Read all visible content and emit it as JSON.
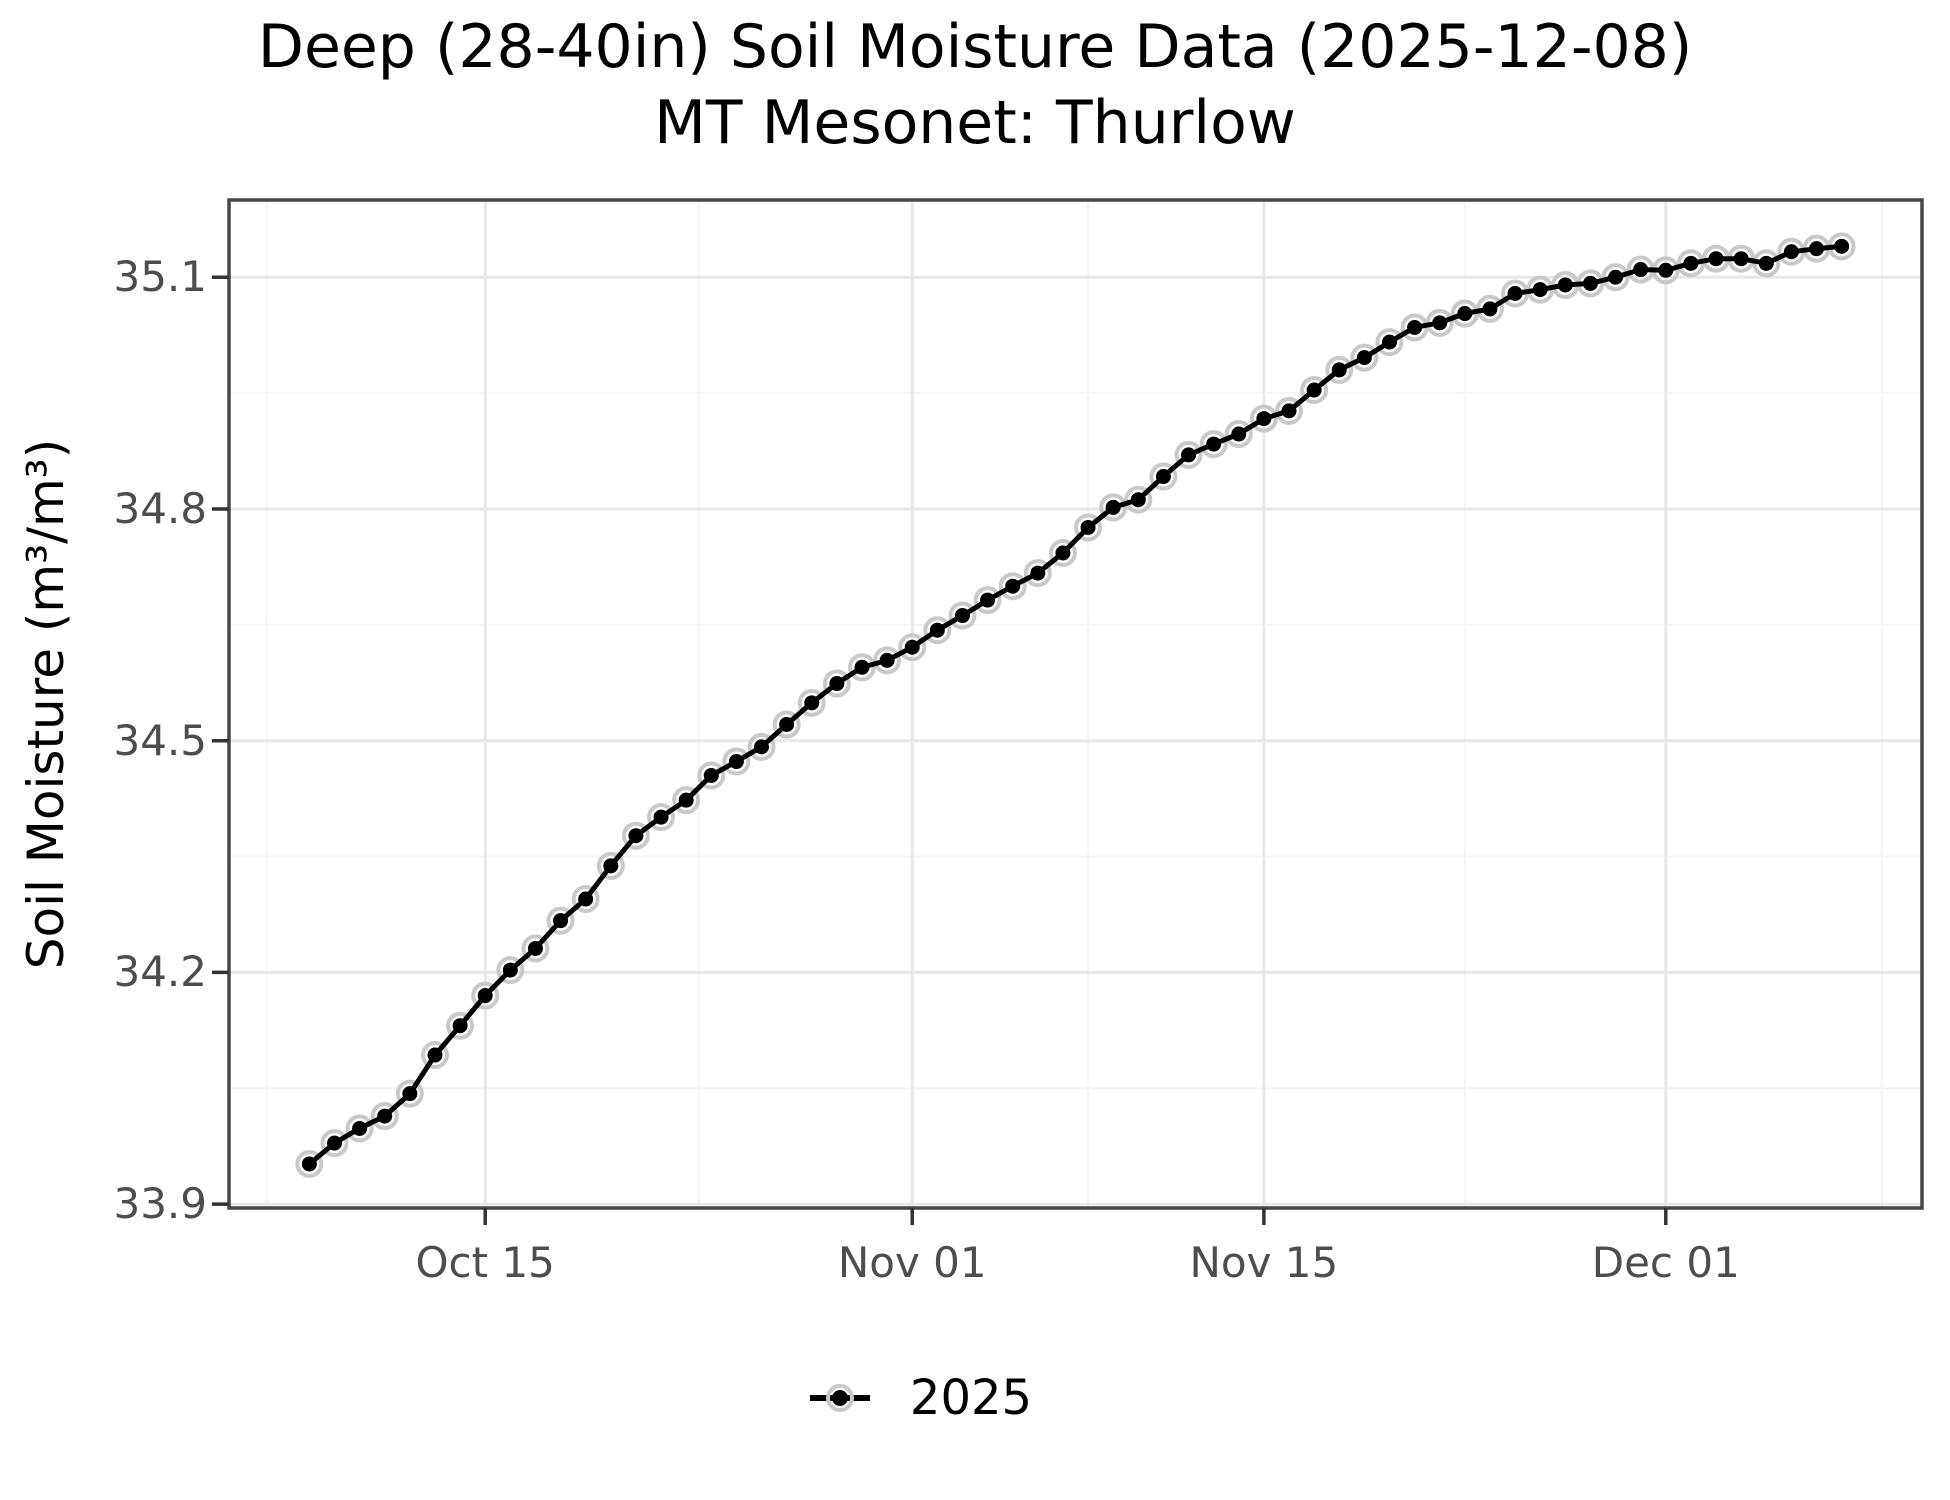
{
  "title": {
    "line1": "Deep (28-40in) Soil Moisture Data (2025-12-08)",
    "line2": "MT Mesonet: Thurlow"
  },
  "legend": {
    "label": "2025",
    "position": "bottom-center"
  },
  "colors": {
    "line": "#000000",
    "point": "#000000",
    "point_halo": "#c9c9c9",
    "grid_major": "#e8e8e8",
    "grid_minor": "#f4f4f4",
    "panel_border": "#474747",
    "tick_mark": "#333333",
    "tick_label": "#4d4d4d",
    "background": "#ffffff"
  },
  "chart_data": {
    "type": "line",
    "title": "Deep (28-40in) Soil Moisture Data (2025-12-08)",
    "subtitle": "MT Mesonet: Thurlow",
    "xlabel": "",
    "ylabel": "Soil Moisture (m³/m³)",
    "grid": "on",
    "legend_position": "bottom",
    "x_tick_labels": [
      "Oct 15",
      "Nov 01",
      "Nov 15",
      "Dec 01"
    ],
    "x_tick_days": [
      7,
      24,
      38,
      54
    ],
    "x_minor_days": [
      -1.7,
      15.5,
      31,
      46,
      62.6
    ],
    "xlim_days": [
      -3.2,
      64.2
    ],
    "y_ticks": [
      33.9,
      34.2,
      34.5,
      34.8,
      35.1
    ],
    "y_minor": [
      34.05,
      34.35,
      34.65,
      34.95
    ],
    "ylim": [
      33.895,
      35.2
    ],
    "series": [
      {
        "name": "2025",
        "dates": [
          "2025-10-08",
          "2025-10-09",
          "2025-10-10",
          "2025-10-11",
          "2025-10-12",
          "2025-10-13",
          "2025-10-14",
          "2025-10-15",
          "2025-10-16",
          "2025-10-17",
          "2025-10-18",
          "2025-10-19",
          "2025-10-20",
          "2025-10-21",
          "2025-10-22",
          "2025-10-23",
          "2025-10-24",
          "2025-10-25",
          "2025-10-26",
          "2025-10-27",
          "2025-10-28",
          "2025-10-29",
          "2025-10-30",
          "2025-10-31",
          "2025-11-01",
          "2025-11-02",
          "2025-11-03",
          "2025-11-04",
          "2025-11-05",
          "2025-11-06",
          "2025-11-07",
          "2025-11-08",
          "2025-11-09",
          "2025-11-10",
          "2025-11-11",
          "2025-11-12",
          "2025-11-13",
          "2025-11-14",
          "2025-11-15",
          "2025-11-16",
          "2025-11-17",
          "2025-11-18",
          "2025-11-19",
          "2025-11-20",
          "2025-11-21",
          "2025-11-22",
          "2025-11-23",
          "2025-11-24",
          "2025-11-25",
          "2025-11-26",
          "2025-11-27",
          "2025-11-28",
          "2025-11-29",
          "2025-11-30",
          "2025-12-01",
          "2025-12-02",
          "2025-12-03",
          "2025-12-04",
          "2025-12-05",
          "2025-12-06",
          "2025-12-07",
          "2025-12-08"
        ],
        "values": [
          33.952,
          33.979,
          33.998,
          34.014,
          34.043,
          34.093,
          34.131,
          34.17,
          34.203,
          34.231,
          34.267,
          34.295,
          34.338,
          34.377,
          34.401,
          34.423,
          34.455,
          34.473,
          34.492,
          34.521,
          34.549,
          34.574,
          34.595,
          34.604,
          34.621,
          34.643,
          34.662,
          34.682,
          34.7,
          34.717,
          34.743,
          34.776,
          34.802,
          34.812,
          34.842,
          34.87,
          34.884,
          34.897,
          34.917,
          34.927,
          34.954,
          34.98,
          34.996,
          35.016,
          35.035,
          35.041,
          35.053,
          35.059,
          35.079,
          35.084,
          35.09,
          35.092,
          35.1,
          35.11,
          35.109,
          35.118,
          35.124,
          35.124,
          35.118,
          35.133,
          35.137,
          35.14
        ]
      }
    ]
  }
}
